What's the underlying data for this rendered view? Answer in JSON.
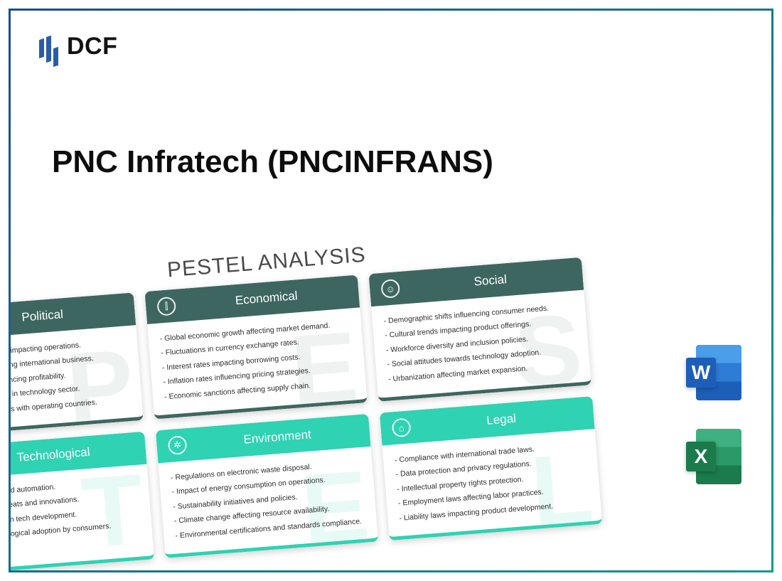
{
  "logo": {
    "text": "DCF"
  },
  "title": "PNC Infratech (PNCINFRANS)",
  "pestel": {
    "heading": "PESTEL ANALYSIS",
    "colors": {
      "row1_header": "#3e6660",
      "row2_header": "#2fd2b3",
      "border_gradient_from": "#1a4d8f",
      "border_gradient_to": "#15998a"
    },
    "cards": [
      {
        "title": "Political",
        "letter": "P",
        "icon": "⚖",
        "items": [
          "Government stability impacting operations.",
          "Trade policies affecting international business.",
          "Taxation rates influencing profitability.",
          "Regulatory changes in technology sector.",
          "Political relationships with operating countries."
        ]
      },
      {
        "title": "Economical",
        "letter": "E",
        "icon": "⫿",
        "items": [
          "Global economic growth affecting market demand.",
          "Fluctuations in currency exchange rates.",
          "Interest rates impacting borrowing costs.",
          "Inflation rates influencing pricing strategies.",
          "Economic sanctions affecting supply chain."
        ]
      },
      {
        "title": "Social",
        "letter": "S",
        "icon": "☺",
        "items": [
          "Demographic shifts influencing consumer needs.",
          "Cultural trends impacting product offerings.",
          "Workforce diversity and inclusion policies.",
          "Social attitudes towards technology adoption.",
          "Urbanization affecting market expansion."
        ]
      },
      {
        "title": "Technological",
        "letter": "T",
        "icon": "⚙",
        "items": [
          "Advances in AI and automation.",
          "Cybersecurity threats and innovations.",
          "High R&D costs in tech development.",
          "Speed of technological adoption by consumers."
        ]
      },
      {
        "title": "Environment",
        "letter": "E",
        "icon": "✲",
        "items": [
          "Regulations on electronic waste disposal.",
          "Impact of energy consumption on operations.",
          "Sustainability initiatives and policies.",
          "Climate change affecting resource availability.",
          "Environmental certifications and standards compliance."
        ]
      },
      {
        "title": "Legal",
        "letter": "L",
        "icon": "⌂",
        "items": [
          "Compliance with international trade laws.",
          "Data protection and privacy regulations.",
          "Intellectual property rights protection.",
          "Employment laws affecting labor practices.",
          "Liability laws impacting product development."
        ]
      }
    ]
  },
  "file_icons": {
    "word": "W",
    "excel": "X"
  }
}
